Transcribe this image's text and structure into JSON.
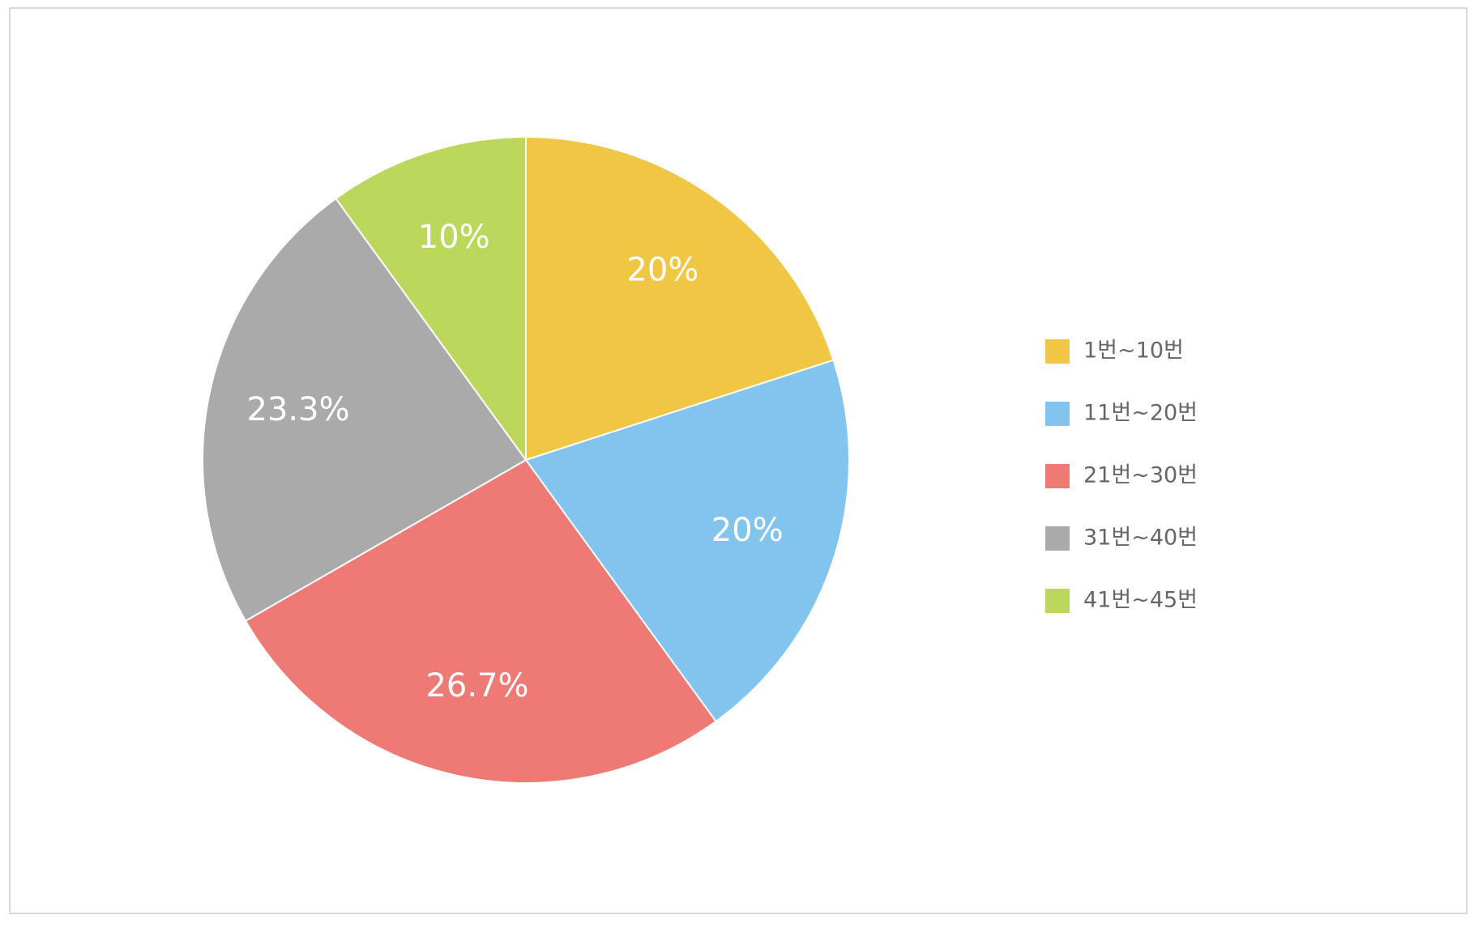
{
  "chart_data": {
    "type": "pie",
    "categories": [
      "1번~10번",
      "11번~20번",
      "21번~30번",
      "31번~40번",
      "41번~45번"
    ],
    "values": [
      20,
      20,
      26.7,
      23.3,
      10
    ],
    "value_labels": [
      "20%",
      "20%",
      "26.7%",
      "23.3%",
      "10%"
    ],
    "colors": [
      "#f0c645",
      "#82c4ee",
      "#ee7a76",
      "#aaaaaa",
      "#bcd85c"
    ],
    "legend": "right"
  }
}
